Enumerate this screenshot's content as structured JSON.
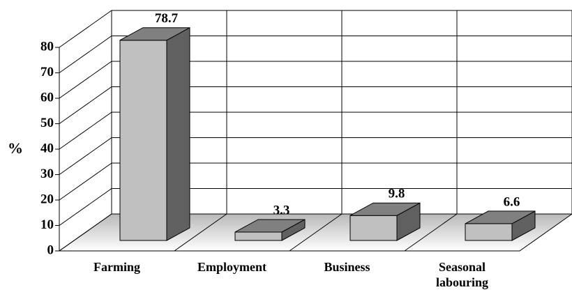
{
  "chart_data": {
    "type": "bar3d",
    "y_label": "%",
    "categories": [
      "Farming",
      "Employment",
      "Business",
      "Seasonal labouring"
    ],
    "values": [
      78.7,
      3.3,
      9.8,
      6.6
    ],
    "value_labels": [
      "78.7",
      "3.3",
      "9.8",
      "6.6"
    ],
    "colors": {
      "front": "#c0c0c0",
      "top": "#808080",
      "side": "#606060"
    },
    "ylim": [
      0,
      80
    ],
    "yticks": [
      0,
      10,
      20,
      30,
      40,
      50,
      60,
      70,
      80
    ],
    "grid": true
  }
}
